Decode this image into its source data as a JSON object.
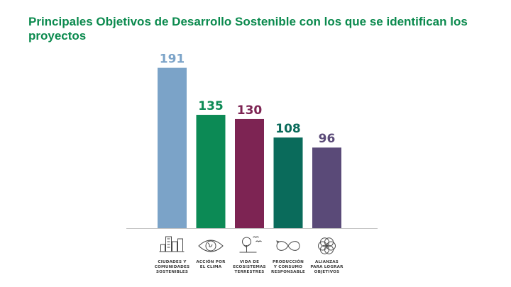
{
  "title": "Principales Objetivos de Desarrollo Sostenible con los que se identifican los proyectos",
  "chart_data": {
    "type": "bar",
    "title": "Principales Objetivos de Desarrollo Sostenible con los que se identifican los proyectos",
    "xlabel": "",
    "ylabel": "",
    "ylim": [
      0,
      200
    ],
    "grid": false,
    "legend": "none",
    "categories": [
      [
        "CIUDADES Y",
        "COMUNIDADES",
        "SOSTENIBLES"
      ],
      [
        "ACCIÓN POR",
        "EL CLIMA"
      ],
      [
        "VIDA DE",
        "ECOSISTEMAS",
        "TERRESTRES"
      ],
      [
        "PRODUCCIÓN",
        "Y CONSUMO",
        "RESPONSABLE"
      ],
      [
        "ALIANZAS",
        "PARA LOGRAR",
        "OBJETIVOS"
      ]
    ],
    "values": [
      191,
      135,
      130,
      108,
      96
    ],
    "value_labels": [
      "191",
      "135",
      "130",
      "108",
      "96"
    ],
    "bar_colors": [
      "#7ba3c8",
      "#0c8a55",
      "#7d2453",
      "#0a6b5b",
      "#5a4a78"
    ],
    "label_colors": [
      "#7ba3c8",
      "#0c8a55",
      "#7d2453",
      "#0a6b5b",
      "#5a4a78"
    ],
    "icons": [
      "city-buildings-icon",
      "globe-eye-icon",
      "tree-birds-icon",
      "infinity-loop-icon",
      "flower-circles-icon"
    ]
  }
}
